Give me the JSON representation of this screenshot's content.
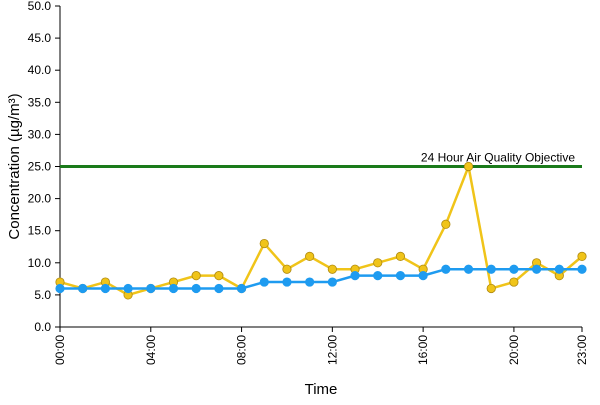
{
  "chart_data": {
    "type": "line",
    "title": "",
    "xlabel": "Time",
    "ylabel": "Concentration (µg/m³)",
    "ylim": [
      0,
      50
    ],
    "y_ticks": [
      "0.0",
      "5.0",
      "10.0",
      "15.0",
      "20.0",
      "25.0",
      "30.0",
      "35.0",
      "40.0",
      "45.0",
      "50.0"
    ],
    "x_tick_labels": [
      "00:00",
      "04:00",
      "08:00",
      "12:00",
      "16:00",
      "20:00",
      "23:00"
    ],
    "x_tick_hours": [
      0,
      4,
      8,
      12,
      16,
      20,
      23
    ],
    "x": [
      0,
      1,
      2,
      3,
      4,
      5,
      6,
      7,
      8,
      9,
      10,
      11,
      12,
      13,
      14,
      15,
      16,
      17,
      18,
      19,
      20,
      21,
      22,
      23
    ],
    "grid": false,
    "series": [
      {
        "color": "#F0C419",
        "marker_fill": "#F0C419",
        "marker_stroke": "#B08A10",
        "values": [
          7,
          6,
          7,
          5,
          6,
          7,
          8,
          8,
          6,
          13,
          9,
          11,
          9,
          9,
          10,
          11,
          9,
          16,
          25,
          6,
          7,
          10,
          8,
          11
        ]
      },
      {
        "color": "#1E9BF0",
        "marker_fill": "#1E9BF0",
        "marker_stroke": "#1E9BF0",
        "values": [
          6,
          6,
          6,
          6,
          6,
          6,
          6,
          6,
          6,
          7,
          7,
          7,
          7,
          8,
          8,
          8,
          8,
          9,
          9,
          9,
          9,
          9,
          9,
          9
        ]
      }
    ],
    "reference_line": {
      "label": "24 Hour Air Quality Objective",
      "value": 25,
      "color": "#1A7A1A"
    }
  }
}
